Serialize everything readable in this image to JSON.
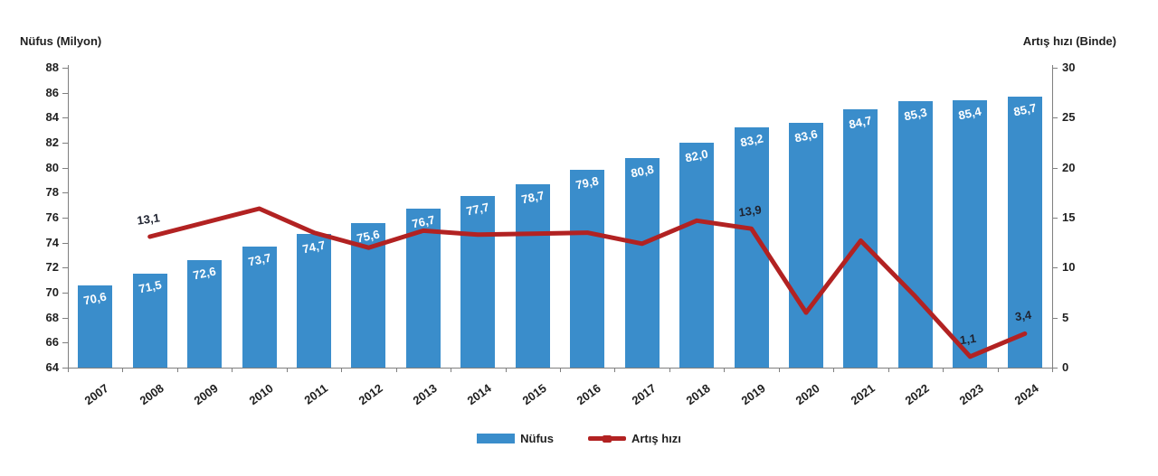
{
  "chart_data": {
    "type": "bar",
    "combo": "bar+line dual axis",
    "categories": [
      "2007",
      "2008",
      "2009",
      "2010",
      "2011",
      "2012",
      "2013",
      "2014",
      "2015",
      "2016",
      "2017",
      "2018",
      "2019",
      "2020",
      "2021",
      "2022",
      "2023",
      "2024"
    ],
    "series": [
      {
        "name": "Nüfus",
        "type": "bar",
        "axis": "left",
        "values": [
          70.6,
          71.5,
          72.6,
          73.7,
          74.7,
          75.6,
          76.7,
          77.7,
          78.7,
          79.8,
          80.8,
          82.0,
          83.2,
          83.6,
          84.7,
          85.3,
          85.4,
          85.7
        ],
        "labels": [
          "70,6",
          "71,5",
          "72,6",
          "73,7",
          "74,7",
          "75,6",
          "76,7",
          "77,7",
          "78,7",
          "79,8",
          "80,8",
          "82,0",
          "83,2",
          "83,6",
          "84,7",
          "85,3",
          "85,4",
          "85,7"
        ]
      },
      {
        "name": "Artış hızı",
        "type": "line",
        "axis": "right",
        "values": [
          null,
          13.1,
          14.5,
          15.9,
          13.5,
          12.0,
          13.7,
          13.3,
          13.4,
          13.5,
          12.4,
          14.7,
          13.9,
          5.5,
          12.7,
          7.1,
          1.1,
          3.4
        ],
        "point_labels": {
          "2008": "13,1",
          "2019": "13,9",
          "2023": "1,1",
          "2024": "3,4"
        }
      }
    ],
    "left_axis": {
      "title": "Nüfus (Milyon)",
      "min": 64,
      "max": 88,
      "step": 2
    },
    "right_axis": {
      "title": "Artış hızı (Binde)",
      "min": 0,
      "max": 30,
      "step": 5
    },
    "legend": [
      "Nüfus",
      "Artış hızı"
    ],
    "legend_position": "bottom",
    "grid": false,
    "colors": {
      "bar": "#3a8dcb",
      "line": "#b22222",
      "axis": "#7f7f7f",
      "tick_label": "#1f1f1f",
      "bar_label": "#ffffff",
      "line_label": "#1f2330"
    }
  }
}
